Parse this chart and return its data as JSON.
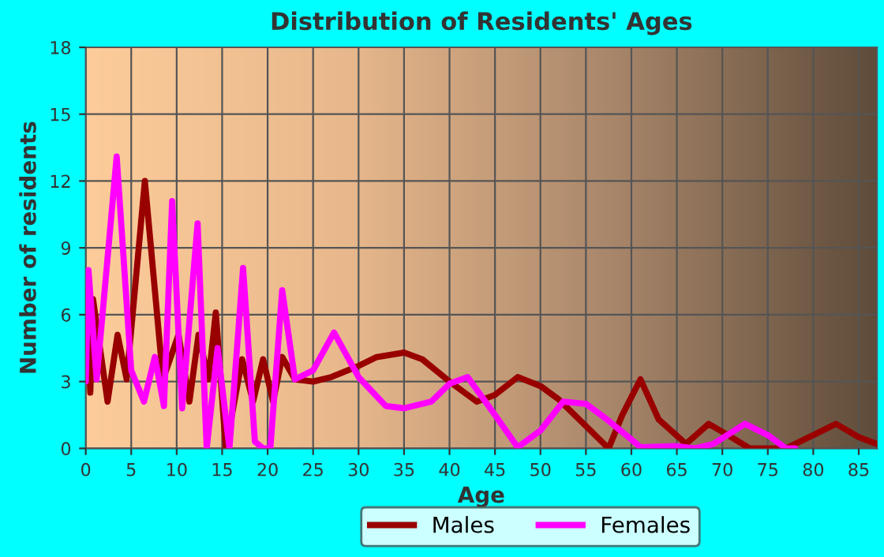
{
  "chart_data": {
    "type": "line",
    "title": "Distribution of Residents' Ages",
    "xlabel": "Age",
    "ylabel": "Number of residents",
    "xlim": [
      0,
      87
    ],
    "ylim": [
      0,
      18
    ],
    "xticks": [
      0,
      5,
      10,
      15,
      20,
      25,
      30,
      35,
      40,
      45,
      50,
      55,
      60,
      65,
      70,
      75,
      80,
      85
    ],
    "yticks": [
      0,
      3,
      6,
      9,
      12,
      15,
      18
    ],
    "grid": true,
    "legend": "bottom",
    "marker": "none",
    "line_style": "solid",
    "series": [
      {
        "name": "Males",
        "color": "#990000",
        "x": [
          0,
          0.5,
          0.8,
          2.4,
          3.5,
          4.5,
          6.5,
          8.5,
          10.2,
          11.4,
          12.4,
          13.5,
          14.3,
          15.4,
          17.2,
          18.4,
          19.5,
          20.6,
          21.6,
          23,
          25,
          27,
          30,
          32,
          35,
          37,
          40,
          43,
          45,
          47.5,
          50,
          52,
          55,
          57.5,
          59,
          61,
          63,
          66,
          68.5,
          71,
          73,
          77,
          80,
          82.5,
          85,
          87
        ],
        "values": [
          7.2,
          2.5,
          6.7,
          2.1,
          5.1,
          3.1,
          12,
          3.1,
          5.1,
          2.1,
          5.1,
          3.1,
          6.1,
          0,
          4,
          2.1,
          4,
          2.1,
          4.1,
          3.1,
          3,
          3.2,
          3.7,
          4.1,
          4.3,
          4,
          3,
          2.1,
          2.4,
          3.2,
          2.8,
          2.2,
          1,
          0,
          1.5,
          3.1,
          1.3,
          0.2,
          1.1,
          0.5,
          0,
          0,
          0.6,
          1.1,
          0.5,
          0.2
        ]
      },
      {
        "name": "Females",
        "color": "#ff00ff",
        "x": [
          0,
          0.3,
          1.2,
          3.4,
          5,
          6.4,
          7.6,
          8.6,
          9.5,
          10.6,
          12.3,
          13.3,
          14.5,
          15.8,
          17.3,
          18.6,
          19.5,
          20.3,
          21.6,
          23,
          25,
          27.3,
          30,
          33,
          35,
          38,
          40,
          42,
          45,
          47.5,
          50,
          52.5,
          55,
          57,
          60,
          61,
          65,
          67,
          69,
          72.5,
          75,
          77,
          78
        ],
        "values": [
          3,
          8,
          3.1,
          13.1,
          3.5,
          2.1,
          4.1,
          1.9,
          11.1,
          1.8,
          10.1,
          0,
          4.5,
          0,
          8.1,
          0.3,
          0,
          0,
          7.1,
          3.1,
          3.5,
          5.2,
          3.2,
          1.9,
          1.8,
          2.1,
          2.9,
          3.2,
          1.5,
          0.05,
          0.8,
          2.1,
          2,
          1.4,
          0.4,
          0.05,
          0.1,
          0,
          0.2,
          1.1,
          0.6,
          0,
          0
        ]
      }
    ]
  }
}
